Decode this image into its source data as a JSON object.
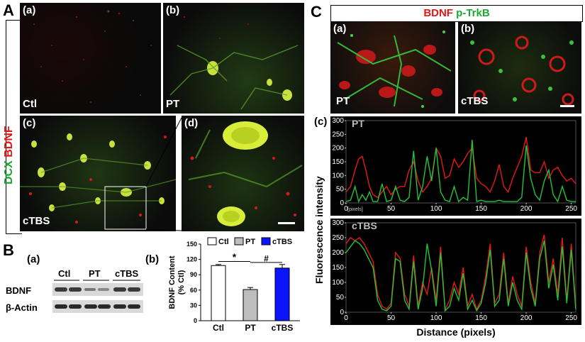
{
  "panels": {
    "A": "A",
    "B": "B",
    "C": "C"
  },
  "panelA": {
    "stain_dcx": "DCX",
    "stain_bdnf": "BDNF",
    "sub_a": "(a)",
    "sub_b": "(b)",
    "sub_c": "(c)",
    "sub_d": "(d)",
    "cond_a": "Ctl",
    "cond_b": "PT",
    "cond_c": "cTBS"
  },
  "panelB": {
    "sub_a": "(a)",
    "sub_b": "(b)",
    "lane_labels": [
      "Ctl",
      "PT",
      "cTBS"
    ],
    "row_labels": [
      "BDNF",
      "β-Actin"
    ]
  },
  "panelC": {
    "legend_bdnf": "BDNF",
    "legend_ptrkb": "p-TrkB",
    "sub_a": "(a)",
    "sub_b": "(b)",
    "sub_c": "(c)",
    "cond_a": "PT",
    "cond_b": "cTBS",
    "plot1_label": "PT",
    "plot2_label": "cTBS",
    "pixels_note": "[pixels]",
    "ylabel": "Fluorescence intensity",
    "xlabel": "Distance (pixels)"
  },
  "chart_data": [
    {
      "type": "bar",
      "categories": [
        "Ctl",
        "PT",
        "cTBS"
      ],
      "values": [
        108,
        61,
        103
      ],
      "errors": [
        2,
        4,
        7
      ],
      "colors": [
        "#ffffff",
        "#bdbdbd",
        "#0a14ff"
      ],
      "ylabel": "BDNF Content (% Ctl)",
      "ylim": [
        0,
        150
      ],
      "yticks": [
        "0",
        "30",
        "60",
        "90",
        "120",
        "150"
      ],
      "legend": [
        "Ctl",
        "PT",
        "cTBS"
      ],
      "annotations": [
        "*",
        "#"
      ]
    },
    {
      "type": "line",
      "title": "PT",
      "xlim": [
        0,
        255
      ],
      "ylim": [
        0,
        300
      ],
      "xticks": [
        "0",
        "50",
        "100",
        "150",
        "200",
        "250"
      ],
      "yticks": [
        "0",
        "50",
        "100",
        "150",
        "200",
        "250",
        "300"
      ],
      "series": [
        {
          "name": "BDNF",
          "color": "#e81818",
          "x": [
            0,
            5,
            10,
            14,
            18,
            22,
            26,
            30,
            35,
            40,
            45,
            50,
            55,
            60,
            65,
            70,
            75,
            80,
            85,
            90,
            95,
            100,
            105,
            110,
            115,
            120,
            125,
            130,
            135,
            140,
            145,
            150,
            155,
            160,
            165,
            170,
            175,
            180,
            185,
            190,
            195,
            200,
            205,
            210,
            215,
            220,
            225,
            230,
            235,
            240,
            245,
            250,
            255
          ],
          "y": [
            40,
            60,
            120,
            160,
            170,
            120,
            60,
            30,
            20,
            40,
            60,
            30,
            50,
            60,
            60,
            120,
            150,
            80,
            40,
            60,
            90,
            200,
            170,
            90,
            100,
            160,
            130,
            150,
            180,
            200,
            90,
            70,
            60,
            40,
            80,
            140,
            60,
            40,
            90,
            130,
            170,
            240,
            120,
            110,
            110,
            150,
            90,
            120,
            130,
            100,
            80,
            90,
            70
          ]
        },
        {
          "name": "p-TrkB",
          "color": "#22c43a",
          "x": [
            0,
            5,
            10,
            14,
            18,
            22,
            26,
            30,
            35,
            40,
            45,
            50,
            55,
            60,
            65,
            70,
            75,
            80,
            85,
            90,
            95,
            100,
            105,
            110,
            115,
            120,
            125,
            130,
            135,
            140,
            145,
            150,
            155,
            160,
            165,
            170,
            175,
            180,
            185,
            190,
            195,
            200,
            205,
            210,
            215,
            220,
            225,
            230,
            235,
            240,
            245,
            250,
            255
          ],
          "y": [
            5,
            10,
            60,
            5,
            30,
            10,
            40,
            5,
            5,
            70,
            5,
            10,
            60,
            10,
            5,
            20,
            190,
            10,
            60,
            170,
            80,
            200,
            40,
            10,
            5,
            60,
            5,
            20,
            10,
            230,
            5,
            10,
            5,
            5,
            5,
            10,
            5,
            5,
            5,
            5,
            20,
            210,
            90,
            30,
            10,
            80,
            120,
            30,
            5,
            60,
            10,
            5,
            5
          ]
        }
      ]
    },
    {
      "type": "line",
      "title": "cTBS",
      "xlim": [
        0,
        255
      ],
      "ylim": [
        0,
        300
      ],
      "xticks": [
        "0",
        "50",
        "100",
        "150",
        "200",
        "250"
      ],
      "yticks": [
        "0",
        "50",
        "100",
        "150",
        "200",
        "250",
        "300"
      ],
      "series": [
        {
          "name": "BDNF",
          "color": "#e81818",
          "x": [
            0,
            5,
            10,
            15,
            20,
            25,
            30,
            35,
            40,
            45,
            50,
            55,
            60,
            65,
            70,
            75,
            80,
            85,
            90,
            95,
            100,
            105,
            110,
            115,
            120,
            125,
            130,
            135,
            140,
            145,
            150,
            155,
            160,
            165,
            170,
            175,
            180,
            185,
            190,
            195,
            200,
            205,
            210,
            215,
            220,
            225,
            230,
            235,
            240,
            245,
            250,
            255
          ],
          "y": [
            230,
            250,
            240,
            250,
            230,
            200,
            170,
            60,
            20,
            10,
            30,
            200,
            180,
            60,
            20,
            190,
            20,
            100,
            60,
            150,
            40,
            220,
            10,
            40,
            100,
            60,
            150,
            20,
            60,
            10,
            40,
            120,
            230,
            30,
            60,
            200,
            30,
            120,
            60,
            20,
            220,
            100,
            30,
            200,
            260,
            100,
            180,
            60,
            250,
            40,
            230,
            20
          ]
        },
        {
          "name": "p-TrkB",
          "color": "#22c43a",
          "x": [
            0,
            5,
            10,
            15,
            20,
            25,
            30,
            35,
            40,
            45,
            50,
            55,
            60,
            65,
            70,
            75,
            80,
            85,
            90,
            95,
            100,
            105,
            110,
            115,
            120,
            125,
            130,
            135,
            140,
            145,
            150,
            155,
            160,
            165,
            170,
            175,
            180,
            185,
            190,
            195,
            200,
            205,
            210,
            215,
            220,
            225,
            230,
            235,
            240,
            245,
            250,
            255
          ],
          "y": [
            200,
            220,
            240,
            230,
            210,
            180,
            150,
            40,
            10,
            5,
            20,
            180,
            170,
            40,
            10,
            170,
            10,
            80,
            230,
            140,
            20,
            200,
            5,
            20,
            80,
            40,
            130,
            10,
            40,
            5,
            30,
            100,
            210,
            20,
            40,
            180,
            20,
            100,
            40,
            10,
            200,
            80,
            20,
            180,
            240,
            80,
            160,
            40,
            220,
            30,
            210,
            10
          ]
        }
      ]
    }
  ]
}
